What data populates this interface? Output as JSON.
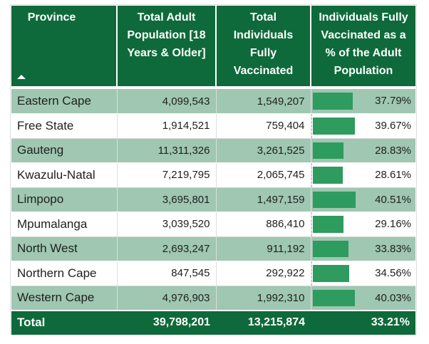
{
  "headers": {
    "province": "Province",
    "total_adult": "Total Adult Population [18 Years & Older]",
    "total_vacc": "Total Individuals Fully Vaccinated",
    "pct": "Individuals Fully Vaccinated as a % of the Adult Population"
  },
  "sort_indicator": "sort-ascending-icon",
  "rows": [
    {
      "province": "Eastern Cape",
      "adult": "4,099,543",
      "vacc": "1,549,207",
      "pct": "37.79%",
      "pct_value": 37.79
    },
    {
      "province": "Free State",
      "adult": "1,914,521",
      "vacc": "759,404",
      "pct": "39.67%",
      "pct_value": 39.67
    },
    {
      "province": "Gauteng",
      "adult": "11,311,326",
      "vacc": "3,261,525",
      "pct": "28.83%",
      "pct_value": 28.83
    },
    {
      "province": "Kwazulu-Natal",
      "adult": "7,219,795",
      "vacc": "2,065,745",
      "pct": "28.61%",
      "pct_value": 28.61
    },
    {
      "province": "Limpopo",
      "adult": "3,695,801",
      "vacc": "1,497,159",
      "pct": "40.51%",
      "pct_value": 40.51
    },
    {
      "province": "Mpumalanga",
      "adult": "3,039,520",
      "vacc": "886,410",
      "pct": "29.16%",
      "pct_value": 29.16
    },
    {
      "province": "North West",
      "adult": "2,693,247",
      "vacc": "911,192",
      "pct": "33.83%",
      "pct_value": 33.83
    },
    {
      "province": "Northern Cape",
      "adult": "847,545",
      "vacc": "292,922",
      "pct": "34.56%",
      "pct_value": 34.56
    },
    {
      "province": "Western Cape",
      "adult": "4,976,903",
      "vacc": "1,992,310",
      "pct": "40.03%",
      "pct_value": 40.03
    }
  ],
  "total": {
    "label": "Total",
    "adult": "39,798,201",
    "vacc": "13,215,874",
    "pct": "33.21%"
  },
  "colors": {
    "header_bg": "#0e6a3a",
    "band_bg": "#9fc7b1",
    "bar": "#2e9b5f"
  }
}
